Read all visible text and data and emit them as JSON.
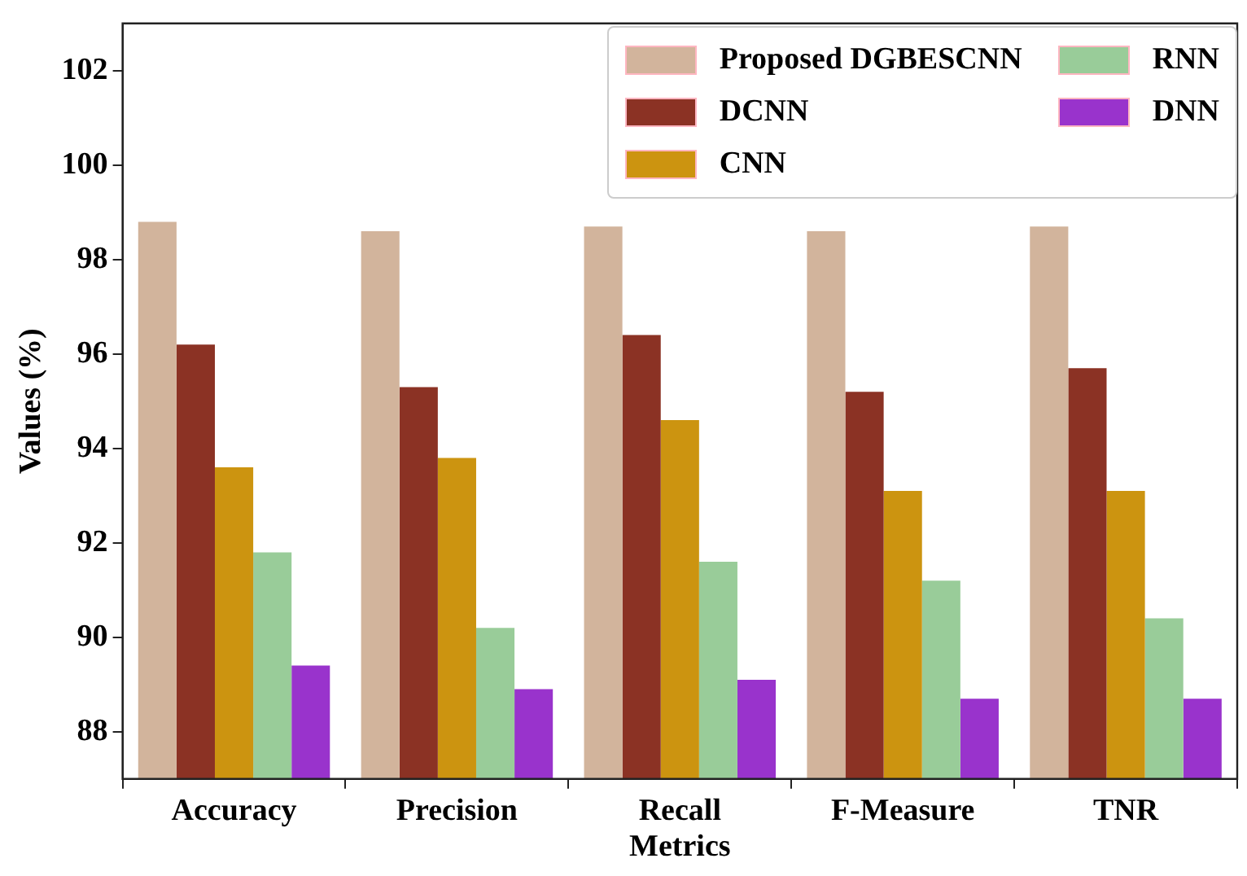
{
  "chart_data": {
    "type": "bar",
    "xlabel": "Metrics",
    "ylabel": "Values (%)",
    "categories": [
      "Accuracy",
      "Precision",
      "Recall",
      "F-Measure",
      "TNR"
    ],
    "series": [
      {
        "name": "Proposed DGBESCNN",
        "color": "#d2b49c",
        "values": [
          98.8,
          98.6,
          98.7,
          98.6,
          98.7
        ]
      },
      {
        "name": "DCNN",
        "color": "#8b3224",
        "values": [
          96.2,
          95.3,
          96.4,
          95.2,
          95.7
        ]
      },
      {
        "name": "CNN",
        "color": "#cc9410",
        "values": [
          93.6,
          93.8,
          94.6,
          93.1,
          93.1
        ]
      },
      {
        "name": "RNN",
        "color": "#99cc99",
        "values": [
          91.8,
          90.2,
          91.6,
          91.2,
          90.4
        ]
      },
      {
        "name": "DNN",
        "color": "#9933cc",
        "values": [
          89.4,
          88.9,
          89.1,
          88.7,
          88.7
        ]
      }
    ],
    "ylim": [
      87,
      103
    ],
    "yticks": [
      88,
      90,
      92,
      94,
      96,
      98,
      100,
      102
    ],
    "grid": false,
    "legend": "top right"
  }
}
